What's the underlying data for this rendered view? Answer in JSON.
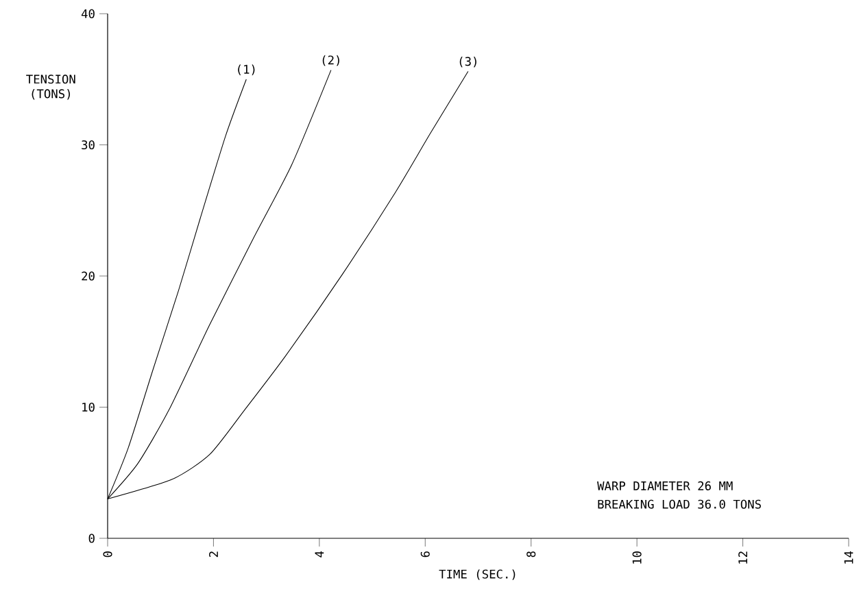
{
  "chart_data": {
    "type": "line",
    "xlabel": "TIME (SEC.)",
    "ylabel": "TENSION (TONS)",
    "xlim": [
      0,
      14
    ],
    "ylim": [
      0,
      40
    ],
    "xticks": [
      0,
      2,
      4,
      6,
      8,
      10,
      12,
      14
    ],
    "yticks": [
      0,
      10,
      20,
      30,
      40
    ],
    "marker": "none",
    "line_style": "solid",
    "series": [
      {
        "name": "(1)",
        "color": "#000000",
        "x": [
          0,
          0.39,
          0.86,
          1.34,
          1.75,
          2.23,
          2.62
        ],
        "values": [
          3,
          6.9,
          12.9,
          18.9,
          24.4,
          30.7,
          35.0
        ]
      },
      {
        "name": "(2)",
        "color": "#000000",
        "x": [
          0,
          0.57,
          1.16,
          1.93,
          2.77,
          3.48,
          4.22
        ],
        "values": [
          3,
          5.7,
          9.8,
          16.3,
          23.0,
          28.5,
          35.7
        ]
      },
      {
        "name": "(3)",
        "color": "#000000",
        "x": [
          0,
          1.22,
          1.93,
          2.59,
          3.36,
          4.43,
          5.44,
          6.1,
          6.81
        ],
        "values": [
          3,
          4.5,
          6.4,
          9.8,
          13.9,
          20.1,
          26.4,
          30.9,
          35.6
        ]
      }
    ],
    "annotations": [
      "WARP DIAMETER 26 MM",
      "BREAKING LOAD 36.0 TONS"
    ]
  }
}
